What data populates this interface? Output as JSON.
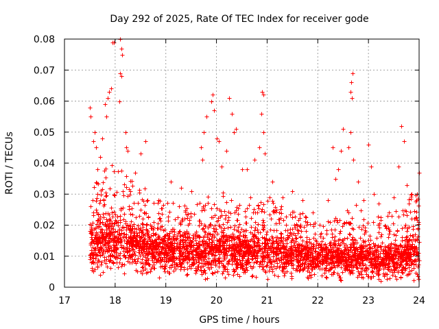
{
  "chart_data": {
    "type": "scatter",
    "title": "Day 292 of 2025, Rate Of TEC Index for receiver gode",
    "xlabel": "GPS time / hours",
    "ylabel": "ROTI / TECUs",
    "xlim": [
      17,
      24
    ],
    "ylim": [
      0,
      0.08
    ],
    "x_ticks": [
      17,
      18,
      19,
      20,
      21,
      22,
      23,
      24
    ],
    "x_tick_labels": [
      "17",
      "18",
      "19",
      "20",
      "21",
      "22",
      "23",
      "24"
    ],
    "y_ticks": [
      0,
      0.01,
      0.02,
      0.03,
      0.04,
      0.05,
      0.06,
      0.07,
      0.08
    ],
    "y_tick_labels": [
      "0",
      "0.01",
      "0.02",
      "0.03",
      "0.04",
      "0.05",
      "0.06",
      "0.07",
      "0.08"
    ],
    "grid": true,
    "marker": "+",
    "marker_color": "#ff0000",
    "data_start_hour": 17.5,
    "series": [
      {
        "name": "ROTI",
        "points": [
          [
            17.5,
            0.058
          ],
          [
            17.52,
            0.055
          ],
          [
            17.55,
            0.028
          ],
          [
            17.57,
            0.047
          ],
          [
            17.6,
            0.05
          ],
          [
            17.62,
            0.045
          ],
          [
            17.65,
            0.038
          ],
          [
            17.7,
            0.042
          ],
          [
            17.75,
            0.048
          ],
          [
            17.8,
            0.059
          ],
          [
            17.82,
            0.055
          ],
          [
            17.85,
            0.061
          ],
          [
            17.88,
            0.063
          ],
          [
            17.92,
            0.064
          ],
          [
            17.95,
            0.079
          ],
          [
            17.97,
            0.079
          ],
          [
            18.1,
            0.08
          ],
          [
            18.12,
            0.077
          ],
          [
            18.14,
            0.075
          ],
          [
            18.1,
            0.069
          ],
          [
            18.13,
            0.068
          ],
          [
            18.08,
            0.06
          ],
          [
            18.2,
            0.05
          ],
          [
            18.22,
            0.045
          ],
          [
            18.25,
            0.044
          ],
          [
            18.5,
            0.043
          ],
          [
            18.6,
            0.047
          ],
          [
            18.4,
            0.037
          ],
          [
            19.1,
            0.034
          ],
          [
            19.3,
            0.032
          ],
          [
            19.5,
            0.031
          ],
          [
            19.7,
            0.045
          ],
          [
            19.72,
            0.041
          ],
          [
            19.75,
            0.05
          ],
          [
            19.8,
            0.055
          ],
          [
            19.9,
            0.06
          ],
          [
            19.92,
            0.062
          ],
          [
            19.95,
            0.057
          ],
          [
            20.0,
            0.048
          ],
          [
            20.05,
            0.047
          ],
          [
            20.1,
            0.039
          ],
          [
            20.2,
            0.044
          ],
          [
            20.25,
            0.061
          ],
          [
            20.3,
            0.056
          ],
          [
            20.35,
            0.05
          ],
          [
            20.38,
            0.051
          ],
          [
            20.5,
            0.038
          ],
          [
            20.6,
            0.038
          ],
          [
            20.75,
            0.041
          ],
          [
            20.85,
            0.045
          ],
          [
            20.9,
            0.063
          ],
          [
            20.92,
            0.062
          ],
          [
            20.88,
            0.056
          ],
          [
            20.93,
            0.05
          ],
          [
            20.95,
            0.043
          ],
          [
            21.1,
            0.034
          ],
          [
            21.3,
            0.029
          ],
          [
            21.5,
            0.031
          ],
          [
            21.7,
            0.028
          ],
          [
            21.9,
            0.024
          ],
          [
            22.2,
            0.028
          ],
          [
            22.3,
            0.045
          ],
          [
            22.35,
            0.035
          ],
          [
            22.4,
            0.038
          ],
          [
            22.45,
            0.044
          ],
          [
            22.5,
            0.051
          ],
          [
            22.6,
            0.045
          ],
          [
            22.65,
            0.05
          ],
          [
            22.68,
            0.069
          ],
          [
            22.66,
            0.066
          ],
          [
            22.64,
            0.063
          ],
          [
            22.67,
            0.061
          ],
          [
            22.7,
            0.041
          ],
          [
            22.8,
            0.034
          ],
          [
            22.9,
            0.028
          ],
          [
            23.0,
            0.046
          ],
          [
            23.05,
            0.039
          ],
          [
            23.1,
            0.03
          ],
          [
            23.2,
            0.027
          ],
          [
            23.4,
            0.024
          ],
          [
            23.5,
            0.029
          ],
          [
            23.6,
            0.039
          ],
          [
            23.65,
            0.052
          ],
          [
            23.7,
            0.047
          ],
          [
            23.75,
            0.033
          ],
          [
            23.85,
            0.03
          ],
          [
            23.9,
            0.022
          ],
          [
            23.95,
            0.028
          ],
          [
            24.0,
            0.037
          ],
          [
            23.98,
            0.021
          ]
        ],
        "dense_band_envelope": {
          "x": [
            17.5,
            17.75,
            18.0,
            18.25,
            18.5,
            18.75,
            19.0,
            19.25,
            19.5,
            19.75,
            20.0,
            20.25,
            20.5,
            20.75,
            21.0,
            21.25,
            21.5,
            21.75,
            22.0,
            22.25,
            22.5,
            22.75,
            23.0,
            23.25,
            23.5,
            23.75,
            24.0
          ],
          "lower": [
            0.006,
            0.006,
            0.006,
            0.006,
            0.006,
            0.006,
            0.006,
            0.006,
            0.005,
            0.005,
            0.005,
            0.005,
            0.005,
            0.005,
            0.005,
            0.005,
            0.005,
            0.005,
            0.004,
            0.004,
            0.004,
            0.004,
            0.004,
            0.004,
            0.004,
            0.004,
            0.004
          ],
          "upper": [
            0.03,
            0.038,
            0.04,
            0.036,
            0.033,
            0.03,
            0.028,
            0.027,
            0.026,
            0.029,
            0.031,
            0.03,
            0.029,
            0.03,
            0.03,
            0.027,
            0.025,
            0.024,
            0.02,
            0.022,
            0.024,
            0.027,
            0.025,
            0.023,
            0.024,
            0.03,
            0.03
          ],
          "median": [
            0.013,
            0.015,
            0.015,
            0.014,
            0.013,
            0.012,
            0.012,
            0.011,
            0.011,
            0.011,
            0.012,
            0.012,
            0.011,
            0.011,
            0.012,
            0.011,
            0.01,
            0.01,
            0.009,
            0.009,
            0.009,
            0.009,
            0.009,
            0.009,
            0.009,
            0.01,
            0.011
          ]
        }
      }
    ]
  }
}
